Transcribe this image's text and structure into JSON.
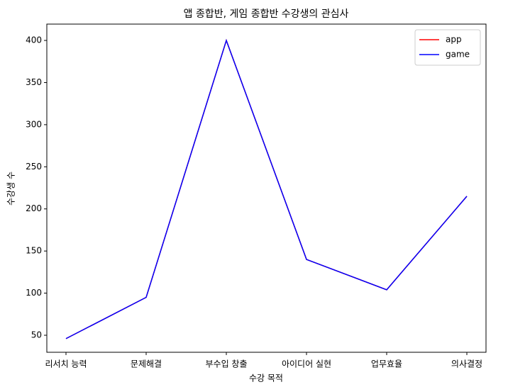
{
  "chart_data": {
    "type": "line",
    "title": "앱 종합반, 게임 종합반 수강생의 관심사",
    "xlabel": "수강 목적",
    "ylabel": "수강생 수",
    "categories": [
      "리서치 능력",
      "문제해결",
      "부수입 창출",
      "아이디어 실현",
      "업무효율",
      "의사결정"
    ],
    "series": [
      {
        "name": "app",
        "color": "#ff0000",
        "values": [
          46,
          95,
          400,
          140,
          104,
          215
        ]
      },
      {
        "name": "game",
        "color": "#0000ff",
        "values": [
          46,
          95,
          400,
          140,
          104,
          215
        ]
      }
    ],
    "ylim": [
      29.8,
      419.4
    ],
    "yticks": [
      50,
      100,
      150,
      200,
      250,
      300,
      350,
      400
    ],
    "legend": "upper right",
    "grid": false
  }
}
